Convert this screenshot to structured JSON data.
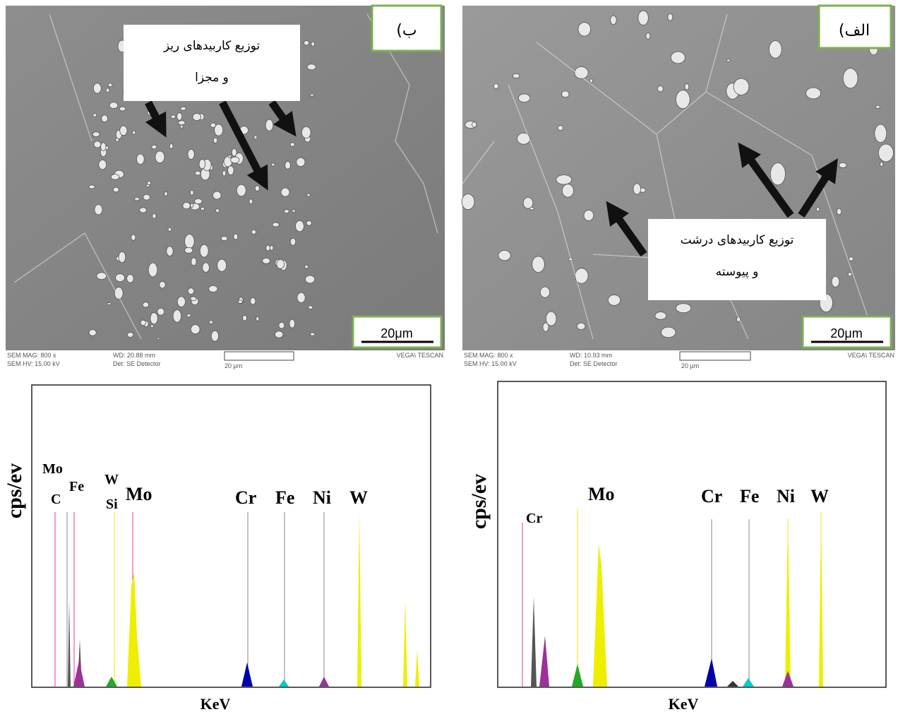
{
  "panels": [
    {
      "sem": {
        "label": "ب)",
        "annotation": [
          "توزیع کاربیدهای ریز",
          "و مجزا"
        ],
        "scale": "20μm",
        "info": [
          "SEM MAG: 800 x",
          "SEM HV: 15.00 kV",
          "WD: 20.88 mm",
          "Det: SE Detector",
          "20 μm",
          "VEGA\\ TESCAN"
        ]
      },
      "spectrum": {
        "y_label": "cps/ev",
        "x_label": "KeV",
        "elements": [
          "Mo",
          "C",
          "Fe",
          "W",
          "Si",
          "Mo",
          "Cr",
          "Fe",
          "Ni",
          "W"
        ]
      }
    },
    {
      "sem": {
        "label": "الف)",
        "annotation": [
          "توزیع کاربیدهای درشت",
          "و پیوسته"
        ],
        "scale": "20μm",
        "info": [
          "SEM MAG: 800 x",
          "SEM HV: 15.00 kV",
          "WD: 10.93 mm",
          "Det: SE Detector",
          "20 μm",
          "VEGA\\ TESCAN"
        ]
      },
      "spectrum": {
        "y_label": "cps/ev",
        "x_label": "KeV",
        "elements": [
          "Cr",
          "Mo",
          "Cr",
          "Fe",
          "Ni",
          "W"
        ]
      }
    }
  ]
}
